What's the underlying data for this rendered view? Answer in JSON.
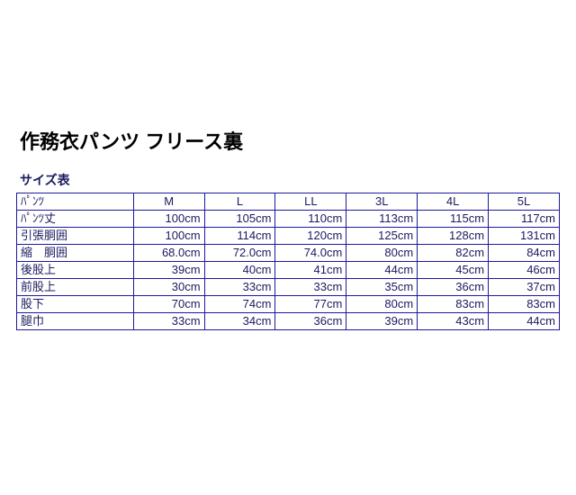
{
  "title": "作務衣パンツ フリース裏",
  "subtitle": "サイズ表",
  "table": {
    "header_label": "ﾊﾟﾝﾂ",
    "columns": [
      "M",
      "L",
      "LL",
      "3L",
      "4L",
      "5L"
    ],
    "rows": [
      {
        "label": "ﾊﾟﾝﾂ丈",
        "cells": [
          "100cm",
          "105cm",
          "110cm",
          "113cm",
          "115cm",
          "117cm"
        ]
      },
      {
        "label": "引張胴囲",
        "cells": [
          "100cm",
          "114cm",
          "120cm",
          "125cm",
          "128cm",
          "131cm"
        ]
      },
      {
        "label": "縮　胴囲",
        "cells": [
          "68.0cm",
          "72.0cm",
          "74.0cm",
          "80cm",
          "82cm",
          "84cm"
        ]
      },
      {
        "label": "後股上",
        "cells": [
          "39cm",
          "40cm",
          "41cm",
          "44cm",
          "45cm",
          "46cm"
        ]
      },
      {
        "label": "前股上",
        "cells": [
          "30cm",
          "33cm",
          "33cm",
          "35cm",
          "36cm",
          "37cm"
        ]
      },
      {
        "label": "股下",
        "cells": [
          "70cm",
          "74cm",
          "77cm",
          "80cm",
          "83cm",
          "83cm"
        ]
      },
      {
        "label": "腿巾",
        "cells": [
          "33cm",
          "34cm",
          "36cm",
          "39cm",
          "43cm",
          "44cm"
        ]
      }
    ]
  }
}
